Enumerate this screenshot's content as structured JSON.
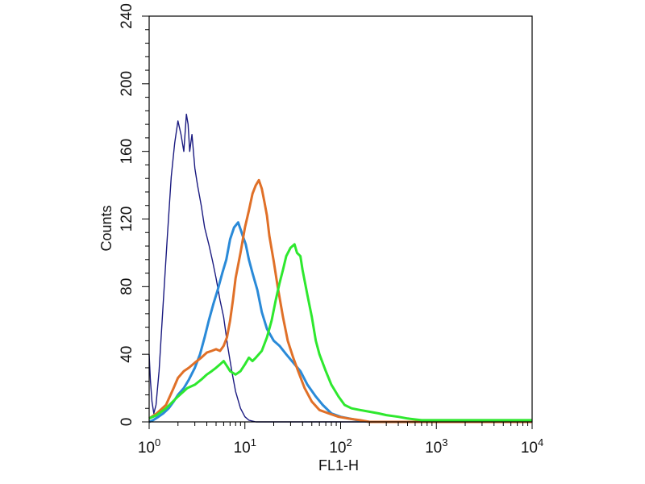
{
  "chart_data": {
    "type": "line",
    "title": "",
    "xlabel": "FL1-H",
    "ylabel": "Counts",
    "x_scale": "log",
    "xlim": [
      1,
      10000
    ],
    "ylim": [
      0,
      240
    ],
    "x_ticks": [
      {
        "value": 1,
        "base": "10",
        "exp": "0"
      },
      {
        "value": 10,
        "base": "10",
        "exp": "1"
      },
      {
        "value": 100,
        "base": "10",
        "exp": "2"
      },
      {
        "value": 1000,
        "base": "10",
        "exp": "3"
      },
      {
        "value": 10000,
        "base": "10",
        "exp": "4"
      }
    ],
    "y_ticks": [
      "0",
      "40",
      "80",
      "120",
      "160",
      "200",
      "240"
    ],
    "grid": false,
    "legend": "none",
    "series": [
      {
        "color": "#1a1a80",
        "x": [
          1.0,
          1.03,
          1.07,
          1.12,
          1.18,
          1.27,
          1.4,
          1.55,
          1.7,
          1.85,
          2.0,
          2.15,
          2.3,
          2.45,
          2.55,
          2.65,
          2.8,
          3.0,
          3.2,
          3.5,
          3.8,
          4.2,
          4.6,
          5.0,
          5.5,
          6.0,
          6.6,
          7.3,
          8.0,
          9.0,
          10.0,
          11.0,
          13.0,
          15.0,
          20.0,
          30.0,
          60.0,
          100.0,
          1000.0,
          10000.0
        ],
        "y": [
          40,
          25,
          12,
          5,
          10,
          30,
          70,
          110,
          145,
          165,
          178,
          170,
          160,
          182,
          176,
          160,
          170,
          150,
          140,
          128,
          115,
          105,
          95,
          85,
          72,
          62,
          45,
          30,
          18,
          8,
          3,
          1,
          0,
          0,
          0,
          0,
          0,
          0,
          0,
          0
        ]
      },
      {
        "color": "#2a8ad8",
        "x": [
          1.0,
          1.1,
          1.25,
          1.4,
          1.6,
          1.8,
          2.0,
          2.3,
          2.6,
          3.0,
          3.4,
          3.8,
          4.2,
          4.7,
          5.2,
          5.8,
          6.4,
          7.0,
          7.7,
          8.5,
          9.0,
          9.5,
          10.2,
          11.0,
          12.0,
          13.5,
          15.0,
          17.0,
          20.0,
          23.0,
          27.0,
          32.0,
          38.0,
          45.0,
          55.0,
          65.0,
          80.0,
          100.0,
          150.0,
          200.0,
          1000.0,
          10000.0
        ],
        "y": [
          0,
          1,
          3,
          5,
          8,
          12,
          16,
          20,
          25,
          32,
          40,
          50,
          60,
          70,
          78,
          88,
          96,
          108,
          115,
          118,
          114,
          110,
          105,
          96,
          88,
          78,
          65,
          55,
          48,
          45,
          40,
          35,
          30,
          22,
          15,
          10,
          5,
          3,
          1,
          0,
          0,
          0
        ]
      },
      {
        "color": "#e07028",
        "x": [
          1.0,
          1.2,
          1.5,
          1.8,
          2.0,
          2.3,
          2.6,
          3.0,
          3.5,
          4.0,
          4.5,
          5.0,
          5.5,
          6.0,
          6.5,
          7.0,
          7.5,
          8.0,
          9.0,
          10.0,
          11.0,
          12.0,
          13.0,
          14.0,
          15.0,
          16.0,
          17.0,
          18.0,
          20.0,
          22.0,
          25.0,
          28.0,
          32.0,
          36.0,
          42.0,
          50.0,
          60.0,
          75.0,
          95.0,
          120.0,
          160.0,
          200.0,
          300.0,
          1000.0,
          10000.0
        ],
        "y": [
          2,
          5,
          10,
          20,
          26,
          30,
          32,
          35,
          38,
          41,
          42,
          43,
          42,
          45,
          50,
          60,
          72,
          85,
          100,
          115,
          125,
          135,
          140,
          143,
          138,
          130,
          122,
          110,
          95,
          80,
          62,
          48,
          38,
          30,
          20,
          12,
          7,
          5,
          3,
          2,
          1,
          0,
          0,
          0,
          0
        ]
      },
      {
        "color": "#2ee82e",
        "x": [
          1.0,
          1.2,
          1.5,
          2.0,
          2.5,
          3.0,
          3.5,
          4.0,
          4.5,
          5.0,
          5.5,
          6.0,
          6.5,
          7.0,
          8.0,
          9.0,
          10.0,
          11.0,
          12.0,
          13.0,
          15.0,
          17.0,
          19.0,
          21.0,
          23.0,
          25.0,
          27.0,
          30.0,
          33.0,
          35.0,
          38.0,
          40.0,
          45.0,
          50.0,
          55.0,
          60.0,
          70.0,
          80.0,
          95.0,
          110.0,
          130.0,
          160.0,
          200.0,
          250.0,
          300.0,
          400.0,
          500.0,
          700.0,
          1000.0,
          10000.0
        ],
        "y": [
          2,
          4,
          8,
          15,
          20,
          22,
          25,
          28,
          30,
          32,
          34,
          36,
          33,
          30,
          28,
          30,
          34,
          38,
          36,
          38,
          42,
          50,
          60,
          72,
          82,
          90,
          98,
          103,
          105,
          100,
          98,
          90,
          75,
          62,
          48,
          40,
          30,
          22,
          15,
          10,
          8,
          7,
          6,
          5,
          4,
          3,
          2,
          1,
          1,
          1
        ]
      }
    ]
  }
}
